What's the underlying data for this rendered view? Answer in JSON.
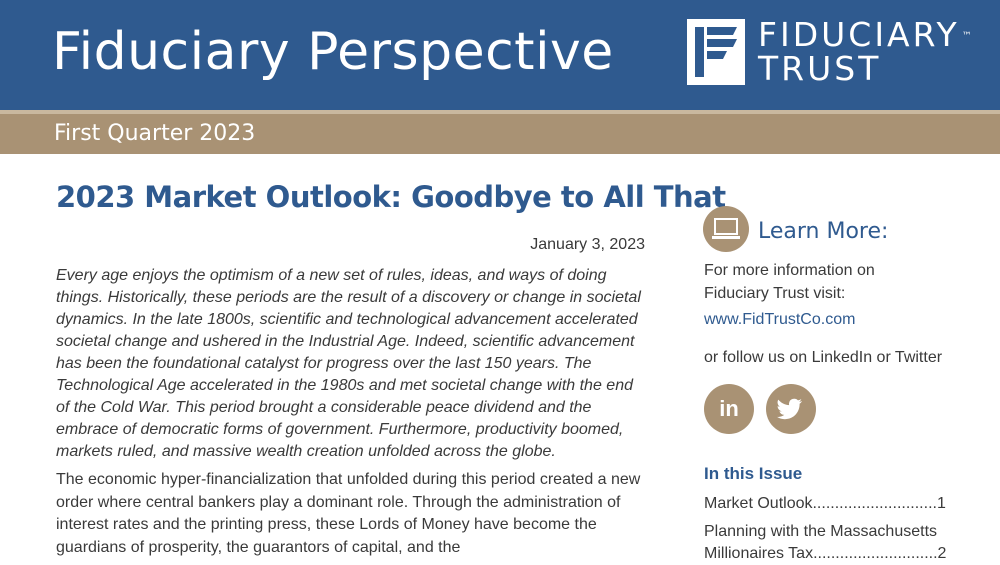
{
  "header": {
    "title": "Fiduciary Perspective",
    "logo_line1": "FIDUCIARY",
    "logo_tm": "™",
    "logo_line2": "TRUST",
    "logo_mark_icon": "fiduciary-f-logo-icon"
  },
  "subbar": {
    "title": "First Quarter 2023"
  },
  "article": {
    "title": "2023 Market Outlook: Goodbye to All That",
    "date": "January 3, 2023",
    "intro": "Every age enjoys the optimism of a new set of rules, ideas, and ways of doing things. Historically, these periods are the result of a discovery or change in societal dynamics. In the late 1800s, scientific and technological advancement accelerated societal change and ushered in the Industrial Age. Indeed, scientific advancement has been the foundational catalyst for progress over the last 150 years. The Technological Age accelerated in the 1980s and met societal change with the end of the Cold War. This period brought a considerable peace dividend and the embrace of democratic forms of government. Furthermore, productivity boomed, markets ruled, and massive wealth creation unfolded across the globe.",
    "body": "The economic hyper-financialization that unfolded during this period created a new order where central bankers play a dominant role. Through the administration of interest rates and the printing press, these Lords of Money have become the guardians of prosperity, the guarantors of capital, and the"
  },
  "sidebar": {
    "learn_icon": "laptop-icon",
    "learn_title": "Learn More:",
    "info_line1": "For more information on",
    "info_line2": "Fiduciary Trust visit:",
    "link": "www.FidTrustCo.com",
    "follow": "or follow us on LinkedIn or Twitter",
    "linkedin_label": "in",
    "twitter_icon": "twitter-bird-icon",
    "issue_title": "In this Issue",
    "toc": [
      {
        "title": "Market Outlook",
        "dots": "............................",
        "page": "1"
      },
      {
        "title_line1": "Planning with the Massachusetts",
        "title_line2": "Millionaires Tax",
        "dots": "............................",
        "page": "2"
      }
    ]
  },
  "colors": {
    "header_blue": "#2f5a8f",
    "tan": "#a99274"
  }
}
